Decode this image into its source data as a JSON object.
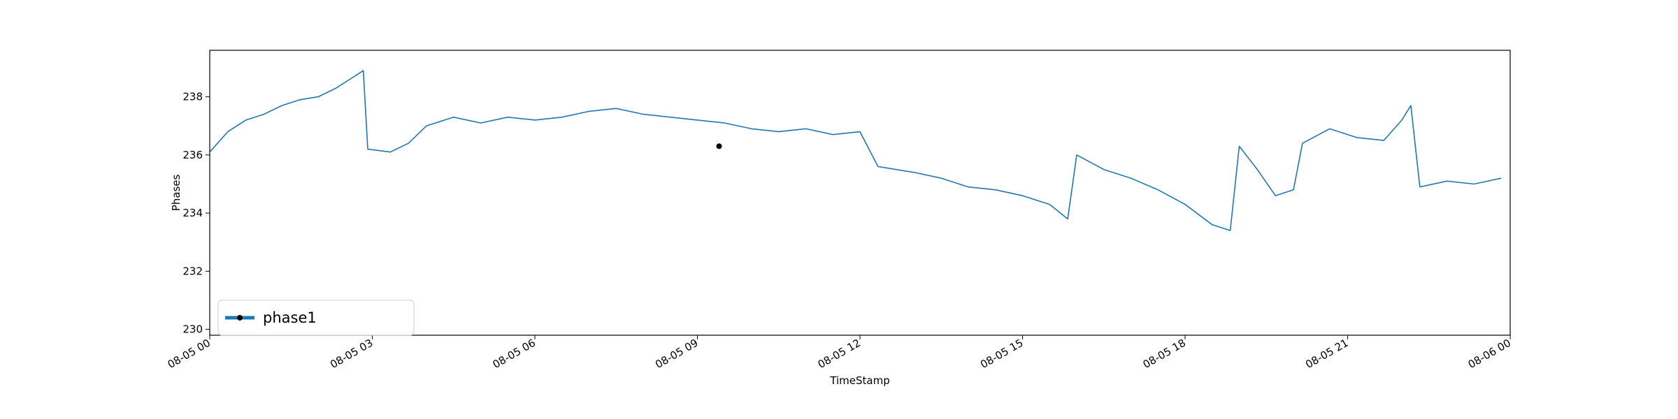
{
  "chart_data": {
    "type": "line",
    "xlabel": "TimeStamp",
    "ylabel": "Phases",
    "xlim": [
      "2019-08-05 00:00",
      "2019-08-06 00:00"
    ],
    "ylim": [
      229.8,
      239.6
    ],
    "x_tick_hours": [
      0,
      3,
      6,
      9,
      12,
      15,
      18,
      21,
      24
    ],
    "x_tick_labels": [
      "08-05 00",
      "08-05 03",
      "08-05 06",
      "08-05 09",
      "08-05 12",
      "08-05 15",
      "08-05 18",
      "08-05 21",
      "08-06 00"
    ],
    "y_ticks": [
      230,
      232,
      234,
      236,
      238
    ],
    "y_tick_labels": [
      "230",
      "232",
      "234",
      "236",
      "238"
    ],
    "grid": false,
    "legend_position": "lower-left",
    "series": [
      {
        "name": "phase1",
        "color": "#1f77b4",
        "marker_points": [
          {
            "x": "08-05 09:24",
            "y": 236.3
          }
        ],
        "points": [
          [
            "08-05 00:00",
            236.1
          ],
          [
            "08-05 00:20",
            236.8
          ],
          [
            "08-05 00:40",
            237.2
          ],
          [
            "08-05 01:00",
            237.4
          ],
          [
            "08-05 01:20",
            237.7
          ],
          [
            "08-05 01:40",
            237.9
          ],
          [
            "08-05 02:00",
            238.0
          ],
          [
            "08-05 02:20",
            238.3
          ],
          [
            "08-05 02:40",
            238.7
          ],
          [
            "08-05 02:50",
            238.9
          ],
          [
            "08-05 02:55",
            236.2
          ],
          [
            "08-05 03:20",
            236.1
          ],
          [
            "08-05 03:40",
            236.4
          ],
          [
            "08-05 04:00",
            237.0
          ],
          [
            "08-05 04:30",
            237.3
          ],
          [
            "08-05 05:00",
            237.1
          ],
          [
            "08-05 05:30",
            237.3
          ],
          [
            "08-05 06:00",
            237.2
          ],
          [
            "08-05 06:30",
            237.3
          ],
          [
            "08-05 07:00",
            237.5
          ],
          [
            "08-05 07:30",
            237.6
          ],
          [
            "08-05 08:00",
            237.4
          ],
          [
            "08-05 08:30",
            237.3
          ],
          [
            "08-05 09:00",
            237.2
          ],
          [
            "08-05 09:30",
            237.1
          ],
          [
            "08-05 10:00",
            236.9
          ],
          [
            "08-05 10:30",
            236.8
          ],
          [
            "08-05 11:00",
            236.9
          ],
          [
            "08-05 11:30",
            236.7
          ],
          [
            "08-05 12:00",
            236.8
          ],
          [
            "08-05 12:20",
            235.6
          ],
          [
            "08-05 13:00",
            235.4
          ],
          [
            "08-05 13:30",
            235.2
          ],
          [
            "08-05 14:00",
            234.9
          ],
          [
            "08-05 14:30",
            234.8
          ],
          [
            "08-05 15:00",
            234.6
          ],
          [
            "08-05 15:30",
            234.3
          ],
          [
            "08-05 15:50",
            233.8
          ],
          [
            "08-05 16:00",
            236.0
          ],
          [
            "08-05 16:30",
            235.5
          ],
          [
            "08-05 17:00",
            235.2
          ],
          [
            "08-05 17:30",
            234.8
          ],
          [
            "08-05 18:00",
            234.3
          ],
          [
            "08-05 18:30",
            233.6
          ],
          [
            "08-05 18:50",
            233.4
          ],
          [
            "08-05 19:00",
            236.3
          ],
          [
            "08-05 19:20",
            235.5
          ],
          [
            "08-05 19:40",
            234.6
          ],
          [
            "08-05 20:00",
            234.8
          ],
          [
            "08-05 20:10",
            236.4
          ],
          [
            "08-05 20:40",
            236.9
          ],
          [
            "08-05 21:10",
            236.6
          ],
          [
            "08-05 21:40",
            236.5
          ],
          [
            "08-05 22:00",
            237.2
          ],
          [
            "08-05 22:10",
            237.7
          ],
          [
            "08-05 22:20",
            234.9
          ],
          [
            "08-05 22:50",
            235.1
          ],
          [
            "08-05 23:20",
            235.0
          ],
          [
            "08-05 23:50",
            235.2
          ]
        ]
      }
    ],
    "daily_profile_note": ""
  }
}
